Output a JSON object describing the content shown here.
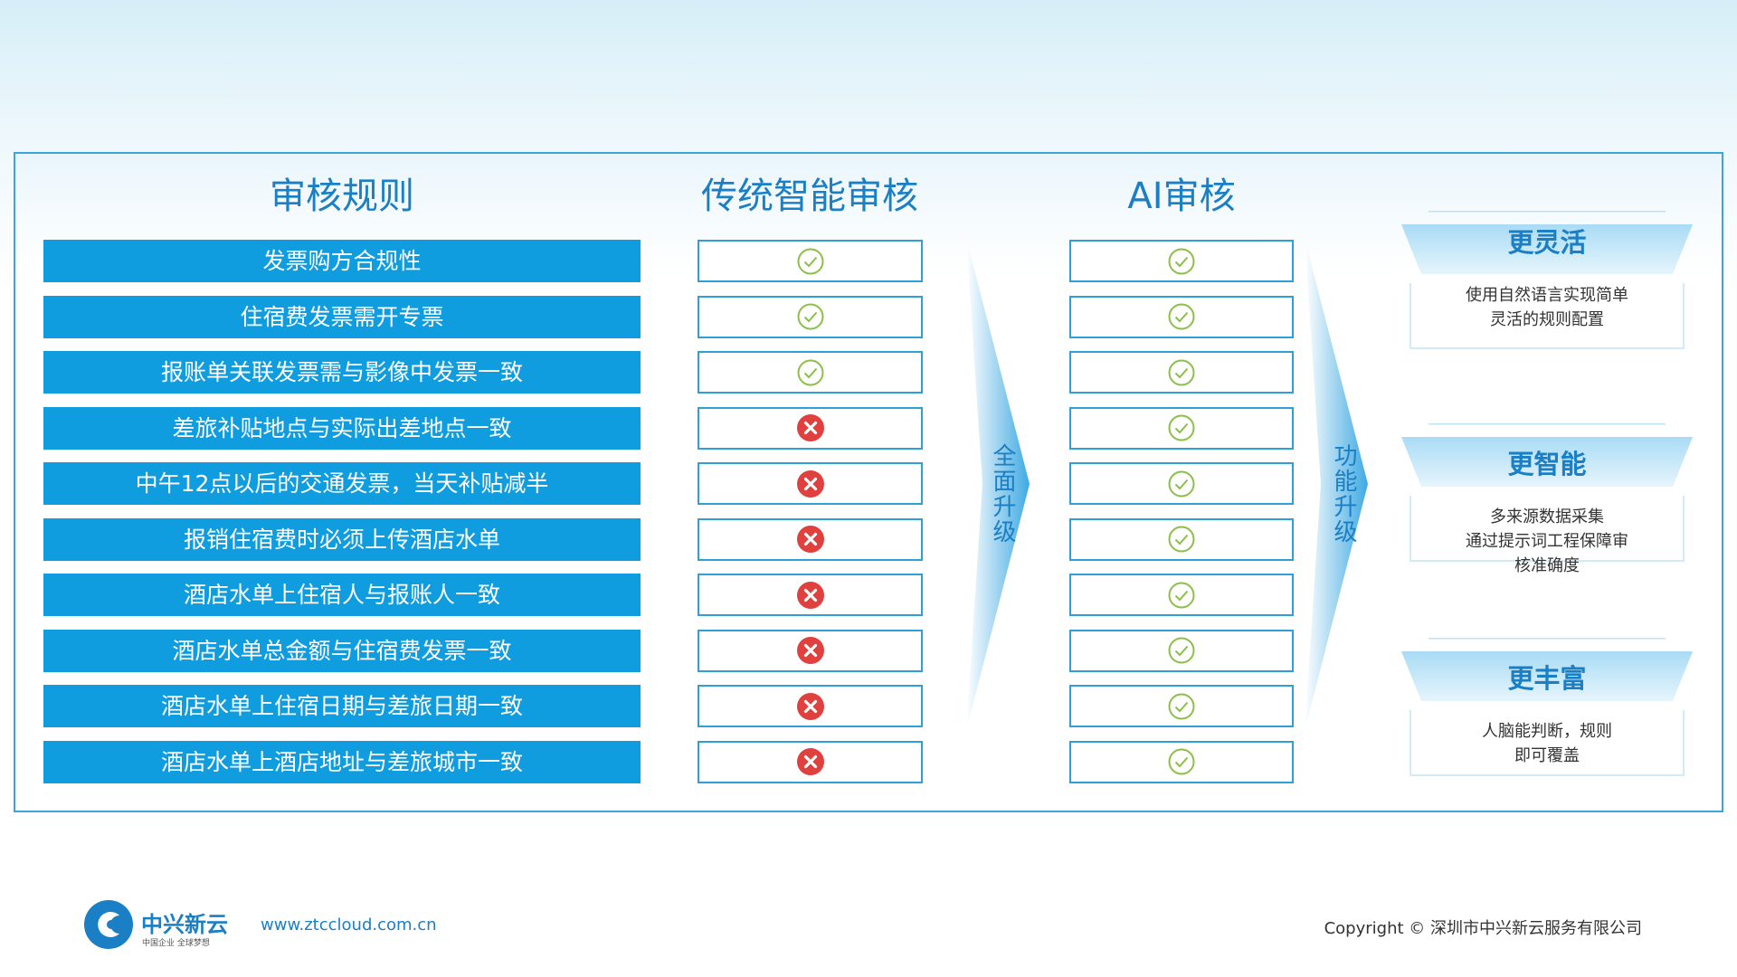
{
  "headers": {
    "rules": "审核规则",
    "traditional": "传统智能审核",
    "ai": "AI审核"
  },
  "rows": [
    {
      "rule": "发票购方合规性",
      "traditional": true,
      "ai": true
    },
    {
      "rule": "住宿费发票需开专票",
      "traditional": true,
      "ai": true
    },
    {
      "rule": "报账单关联发票需与影像中发票一致",
      "traditional": true,
      "ai": true
    },
    {
      "rule": "差旅补贴地点与实际出差地点一致",
      "traditional": false,
      "ai": true
    },
    {
      "rule": "中午12点以后的交通发票，当天补贴减半",
      "traditional": false,
      "ai": true
    },
    {
      "rule": "报销住宿费时必须上传酒店水单",
      "traditional": false,
      "ai": true
    },
    {
      "rule": "酒店水单上住宿人与报账人一致",
      "traditional": false,
      "ai": true
    },
    {
      "rule": "酒店水单总金额与住宿费发票一致",
      "traditional": false,
      "ai": true
    },
    {
      "rule": "酒店水单上住宿日期与差旅日期一致",
      "traditional": false,
      "ai": true
    },
    {
      "rule": "酒店水单上酒店地址与差旅城市一致",
      "traditional": false,
      "ai": true
    }
  ],
  "arrows": [
    "全面升级",
    "功能升级"
  ],
  "cards": [
    {
      "title": "更灵活",
      "lines": [
        "使用自然语言实现简单",
        "灵活的规则配置"
      ]
    },
    {
      "title": "更智能",
      "lines": [
        "多来源数据采集",
        "通过提示词工程保障审",
        "核准确度"
      ]
    },
    {
      "title": "更丰富",
      "lines": [
        "人脑能判断，规则",
        "即可覆盖"
      ]
    }
  ],
  "footer": {
    "logo": "中兴新云",
    "tagline": "中国企业 全球梦想",
    "url": "www.ztccloud.com.cn",
    "copyright": "Copyright © 深圳市中兴新云服务有限公司"
  }
}
